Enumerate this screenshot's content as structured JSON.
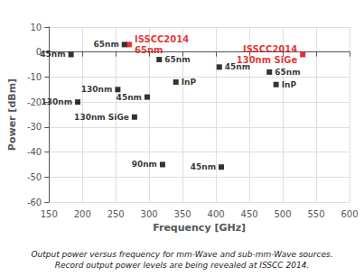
{
  "chart_data": {
    "type": "scatter",
    "xlabel": "Frequency [GHz]",
    "ylabel": "Power [dBm]",
    "xlim": [
      150,
      600
    ],
    "ylim": [
      -60,
      10
    ],
    "xticks": [
      150,
      200,
      250,
      300,
      350,
      400,
      450,
      500,
      550,
      600
    ],
    "yticks": [
      -60,
      -50,
      -40,
      -30,
      -20,
      -10,
      0,
      10
    ],
    "grid": true,
    "caption": [
      "Output power versus frequency for mm-Wave and sub-mm-Wave sources.",
      "Record output power levels are being revealed at ISSCC 2014."
    ],
    "series": [
      {
        "color": "#000000",
        "marker": "square",
        "x": [
          183,
          193,
          253,
          263,
          297,
          278,
          315,
          340,
          320,
          405,
          408,
          480,
          490
        ],
        "values": [
          -1,
          -20,
          -15,
          3,
          -18,
          -26,
          -3,
          -12,
          -45,
          -6,
          -46,
          -8,
          -13
        ],
        "labels": [
          "45nm",
          "130nm",
          "130nm",
          "65nm",
          "45nm",
          "130nm SiGe",
          "65nm",
          "InP",
          "90nm",
          "45nm",
          "45nm",
          "65nm",
          "InP"
        ]
      },
      {
        "color": "#dd0000",
        "marker": "square",
        "x": [
          270,
          530
        ],
        "values": [
          3,
          -1
        ],
        "labels": [
          [
            "ISSCC2014",
            "65nm"
          ],
          [
            "ISSCC2014",
            "130nm SiGe"
          ]
        ]
      }
    ]
  }
}
